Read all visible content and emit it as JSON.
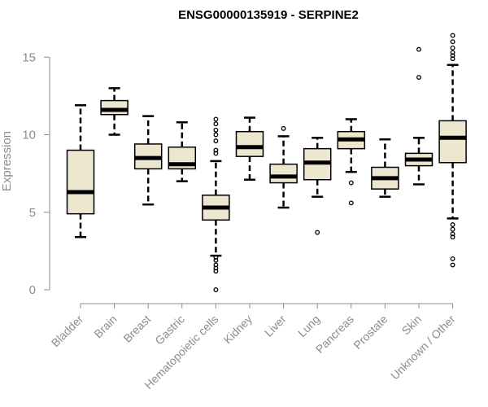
{
  "chart_data": {
    "type": "box",
    "title": "ENSG00000135919 - SERPINE2",
    "xlabel": "",
    "ylabel": "Expression",
    "ylim": [
      0,
      16
    ],
    "yticks": [
      0,
      5,
      10,
      15
    ],
    "grid": false,
    "categories": [
      "Bladder",
      "Brain",
      "Breast",
      "Gastric",
      "Hematopoietic cells",
      "Kidney",
      "Liver",
      "Lung",
      "Pancreas",
      "Prostate",
      "Skin",
      "Unknown / Other"
    ],
    "boxes": [
      {
        "whisker_low": 3.4,
        "q1": 4.9,
        "median": 6.3,
        "q3": 9.0,
        "whisker_high": 11.9,
        "outliers": []
      },
      {
        "whisker_low": 10.0,
        "q1": 11.3,
        "median": 11.6,
        "q3": 12.2,
        "whisker_high": 13.0,
        "outliers": []
      },
      {
        "whisker_low": 5.5,
        "q1": 7.8,
        "median": 8.5,
        "q3": 9.4,
        "whisker_high": 11.2,
        "outliers": []
      },
      {
        "whisker_low": 7.0,
        "q1": 7.8,
        "median": 8.1,
        "q3": 9.2,
        "whisker_high": 10.8,
        "outliers": []
      },
      {
        "whisker_low": 2.2,
        "q1": 4.5,
        "median": 5.3,
        "q3": 6.1,
        "whisker_high": 8.3,
        "outliers": [
          0.0,
          1.2,
          1.4,
          1.6,
          1.9,
          2.1,
          8.8,
          9.0,
          9.6,
          10.0,
          10.3,
          10.7,
          11.0
        ]
      },
      {
        "whisker_low": 7.1,
        "q1": 8.6,
        "median": 9.2,
        "q3": 10.2,
        "whisker_high": 11.1,
        "outliers": []
      },
      {
        "whisker_low": 5.3,
        "q1": 6.9,
        "median": 7.3,
        "q3": 8.1,
        "whisker_high": 9.9,
        "outliers": [
          10.4
        ]
      },
      {
        "whisker_low": 6.0,
        "q1": 7.1,
        "median": 8.2,
        "q3": 9.1,
        "whisker_high": 9.8,
        "outliers": [
          3.7
        ]
      },
      {
        "whisker_low": 7.6,
        "q1": 9.1,
        "median": 9.7,
        "q3": 10.2,
        "whisker_high": 11.0,
        "outliers": [
          5.6,
          6.9
        ]
      },
      {
        "whisker_low": 6.0,
        "q1": 6.5,
        "median": 7.2,
        "q3": 7.9,
        "whisker_high": 9.7,
        "outliers": []
      },
      {
        "whisker_low": 6.8,
        "q1": 8.0,
        "median": 8.4,
        "q3": 8.8,
        "whisker_high": 9.8,
        "outliers": [
          13.7,
          15.5
        ]
      },
      {
        "whisker_low": 4.6,
        "q1": 8.2,
        "median": 9.8,
        "q3": 10.9,
        "whisker_high": 14.5,
        "outliers": [
          1.6,
          2.0,
          3.4,
          3.6,
          3.9,
          4.2,
          14.9,
          15.1,
          15.3,
          15.6,
          16.0,
          16.4
        ]
      }
    ],
    "colors": {
      "box_fill": "#ede7cf",
      "stroke": "#000000",
      "median": "#000000",
      "axis": "#8c8c8c",
      "title": "#000000",
      "label": "#8c8c8c"
    }
  }
}
